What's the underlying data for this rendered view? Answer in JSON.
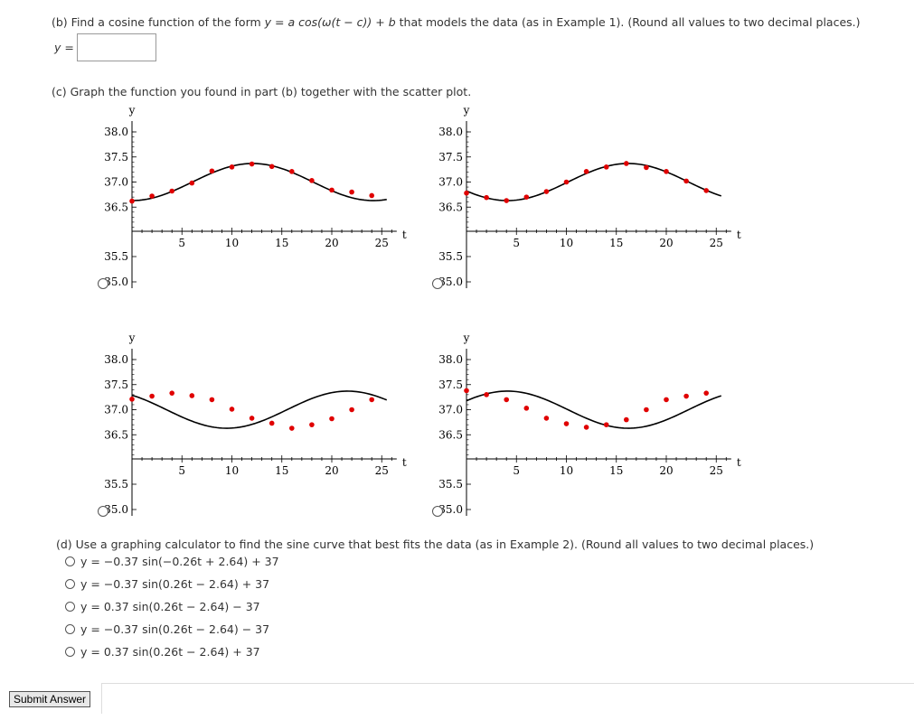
{
  "part_b": {
    "prompt_prefix": "(b) Find a cosine function of the form ",
    "prompt_formula": "y = a cos(ω(t − c)) + b",
    "prompt_suffix": " that models the data (as in Example 1). (Round all values to two decimal places.)",
    "answer_label": "y =",
    "answer_value": ""
  },
  "part_c": {
    "prompt": "(c) Graph the function you found in part (b) together with the scatter plot."
  },
  "chart_data": [
    {
      "type": "scatter",
      "ylabel": "y",
      "xlabel": "t",
      "xticks": [
        "5",
        "10",
        "15",
        "20",
        "25"
      ],
      "yticks": [
        "38.0",
        "37.5",
        "37.0",
        "36.5",
        "35.5",
        "35.0"
      ],
      "xlim": [
        0,
        26.5
      ],
      "ylim": [
        35,
        38
      ],
      "points_x": [
        0,
        2,
        4,
        6,
        8,
        10,
        12,
        14,
        16,
        18,
        20,
        22,
        24
      ],
      "points_y": [
        36.62,
        36.72,
        36.82,
        36.98,
        37.22,
        37.3,
        37.36,
        37.31,
        37.21,
        37.03,
        36.84,
        36.8,
        36.73
      ],
      "curve": {
        "a": -0.37,
        "w": 0.26,
        "c": 0.0,
        "b": 37,
        "form": "cos"
      },
      "selected": false
    },
    {
      "type": "scatter",
      "ylabel": "y",
      "xlabel": "t",
      "xticks": [
        "5",
        "10",
        "15",
        "20",
        "25"
      ],
      "yticks": [
        "38.0",
        "37.5",
        "37.0",
        "36.5",
        "35.5",
        "35.0"
      ],
      "xlim": [
        0,
        26.5
      ],
      "ylim": [
        35,
        38
      ],
      "points_x": [
        0,
        2,
        4,
        6,
        8,
        10,
        12,
        14,
        16,
        18,
        20,
        22,
        24
      ],
      "points_y": [
        36.78,
        36.69,
        36.63,
        36.7,
        36.81,
        37.0,
        37.21,
        37.3,
        37.37,
        37.29,
        37.21,
        37.02,
        36.83
      ],
      "curve": {
        "a": 0.37,
        "w": 0.26,
        "c": 10.15,
        "b": 37,
        "form": "sin"
      },
      "selected": false
    },
    {
      "type": "scatter",
      "ylabel": "y",
      "xlabel": "t",
      "xticks": [
        "5",
        "10",
        "15",
        "20",
        "25"
      ],
      "yticks": [
        "38.0",
        "37.5",
        "37.0",
        "36.5",
        "35.5",
        "35.0"
      ],
      "xlim": [
        0,
        26.5
      ],
      "ylim": [
        35,
        38
      ],
      "points_x": [
        0,
        2,
        4,
        6,
        8,
        10,
        12,
        14,
        16,
        18,
        20,
        22,
        24
      ],
      "points_y": [
        37.21,
        37.27,
        37.33,
        37.28,
        37.2,
        37.01,
        36.83,
        36.73,
        36.63,
        36.7,
        36.82,
        37.0,
        37.2
      ],
      "curve": {
        "a": 0.37,
        "w": 0.26,
        "c": -2.6,
        "b": 37,
        "form": "cos"
      },
      "selected": false
    },
    {
      "type": "scatter",
      "ylabel": "y",
      "xlabel": "t",
      "xticks": [
        "5",
        "10",
        "15",
        "20",
        "25"
      ],
      "yticks": [
        "38.0",
        "37.5",
        "37.0",
        "36.5",
        "35.5",
        "35.0"
      ],
      "xlim": [
        0,
        26.5
      ],
      "ylim": [
        35,
        38
      ],
      "points_x": [
        0,
        2,
        4,
        6,
        8,
        10,
        12,
        14,
        16,
        18,
        20,
        22,
        24
      ],
      "points_y": [
        37.38,
        37.3,
        37.2,
        37.03,
        36.83,
        36.72,
        36.65,
        36.7,
        36.8,
        37.0,
        37.2,
        37.27,
        37.33
      ],
      "curve": {
        "a": -0.37,
        "w": 0.26,
        "c": 10.15,
        "b": 37,
        "form": "sin"
      },
      "selected": false
    }
  ],
  "style": {
    "point_color": "#e00000",
    "curve_color": "#000000"
  },
  "part_d": {
    "prompt": "(d) Use a graphing calculator to find the sine curve that best fits the data (as in Example 2). (Round all values to two decimal places.)",
    "options": [
      "y = −0.37 sin(−0.26t + 2.64) + 37",
      "y = −0.37 sin(0.26t − 2.64) + 37",
      "y = 0.37 sin(0.26t − 2.64) − 37",
      "y = −0.37 sin(0.26t − 2.64) − 37",
      "y = 0.37 sin(0.26t − 2.64) + 37"
    ]
  },
  "submit_label": "Submit Answer"
}
